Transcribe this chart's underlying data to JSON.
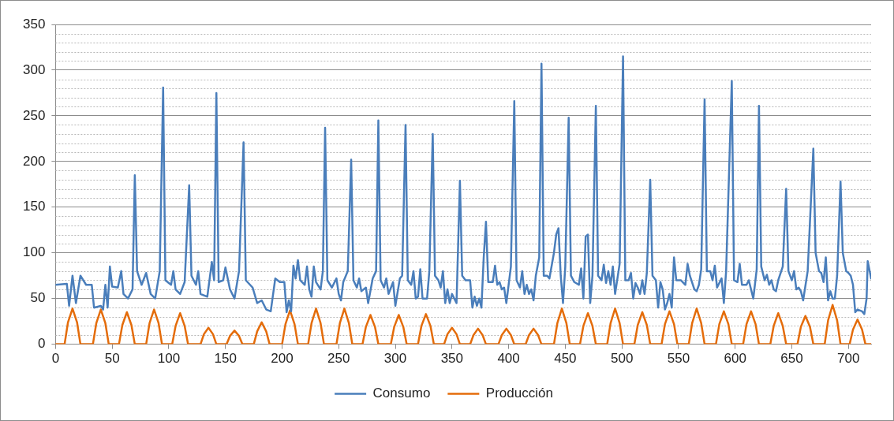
{
  "chart_data": {
    "type": "line",
    "xlim": [
      0,
      720
    ],
    "xticks": [
      0,
      50,
      100,
      150,
      200,
      250,
      300,
      350,
      400,
      450,
      500,
      550,
      600,
      650,
      700
    ],
    "ylim": [
      0,
      350
    ],
    "yticks": [
      0,
      {
        "value": 10,
        "label": null
      },
      {
        "value": 20,
        "label": null
      },
      {
        "value": 30,
        "label": null
      },
      {
        "value": 40,
        "label": null
      },
      50,
      {
        "value": 60,
        "label": null
      },
      {
        "value": 70,
        "label": null
      },
      {
        "value": 80,
        "label": null
      },
      {
        "value": 90,
        "label": null
      },
      100,
      {
        "value": 110,
        "label": null
      },
      {
        "value": 120,
        "label": null
      },
      {
        "value": 130,
        "label": null
      },
      {
        "value": 140,
        "label": null
      },
      150,
      {
        "value": 160,
        "label": null
      },
      {
        "value": 170,
        "label": null
      },
      {
        "value": 180,
        "label": null
      },
      {
        "value": 190,
        "label": null
      },
      200,
      {
        "value": 210,
        "label": null
      },
      {
        "value": 220,
        "label": null
      },
      {
        "value": 230,
        "label": null
      },
      {
        "value": 240,
        "label": null
      },
      250,
      {
        "value": 260,
        "label": null
      },
      {
        "value": 270,
        "label": null
      },
      {
        "value": 280,
        "label": null
      },
      {
        "value": 290,
        "label": null
      },
      300,
      {
        "value": 310,
        "label": null
      },
      {
        "value": 320,
        "label": null
      },
      {
        "value": 330,
        "label": null
      },
      {
        "value": 340,
        "label": null
      },
      350
    ],
    "grid": "y",
    "legend": "bottom",
    "marker": "none",
    "line_style": "solid",
    "series": [
      {
        "name": "Consumo",
        "color": "#4a7ebb",
        "x": [
          0,
          10,
          12,
          15,
          18,
          22,
          27,
          32,
          34,
          40,
          42,
          44,
          46,
          48,
          50,
          55,
          58,
          60,
          64,
          68,
          70,
          72,
          76,
          80,
          84,
          88,
          92,
          95,
          97,
          102,
          104,
          106,
          110,
          114,
          118,
          120,
          124,
          126,
          128,
          134,
          138,
          140,
          142,
          144,
          148,
          150,
          154,
          158,
          162,
          166,
          168,
          174,
          178,
          182,
          186,
          190,
          194,
          198,
          202,
          204,
          206,
          208,
          210,
          212,
          214,
          216,
          220,
          222,
          224,
          226,
          228,
          230,
          234,
          236,
          238,
          240,
          244,
          248,
          250,
          252,
          254,
          258,
          261,
          263,
          266,
          268,
          270,
          274,
          276,
          280,
          283,
          285,
          287,
          290,
          292,
          294,
          298,
          300,
          304,
          306,
          309,
          311,
          314,
          316,
          318,
          320,
          322,
          324,
          328,
          330,
          333,
          335,
          338,
          340,
          342,
          344,
          346,
          348,
          350,
          354,
          357,
          359,
          362,
          366,
          368,
          370,
          372,
          374,
          376,
          378,
          380,
          382,
          386,
          388,
          390,
          392,
          394,
          396,
          398,
          402,
          405,
          407,
          410,
          412,
          414,
          416,
          418,
          420,
          422,
          424,
          427,
          429,
          431,
          434,
          436,
          440,
          442,
          444,
          446,
          448,
          450,
          453,
          455,
          458,
          462,
          464,
          466,
          468,
          470,
          472,
          474,
          477,
          479,
          482,
          484,
          486,
          488,
          490,
          492,
          494,
          498,
          501,
          503,
          506,
          508,
          510,
          512,
          514,
          516,
          518,
          520,
          522,
          525,
          527,
          530,
          532,
          534,
          536,
          538,
          540,
          542,
          544,
          546,
          548,
          552,
          556,
          558,
          560,
          564,
          566,
          568,
          570,
          573,
          575,
          578,
          580,
          582,
          584,
          588,
          590,
          592,
          597,
          599,
          602,
          604,
          606,
          610,
          612,
          614,
          616,
          619,
          621,
          623,
          626,
          628,
          630,
          632,
          634,
          636,
          638,
          642,
          645,
          647,
          650,
          652,
          654,
          656,
          658,
          660,
          664,
          669,
          671,
          674,
          676,
          678,
          680,
          682,
          684,
          686,
          688,
          690,
          693,
          695,
          698,
          700,
          702,
          704,
          706,
          708,
          712,
          714,
          716,
          717,
          720
        ],
        "values": [
          65,
          66,
          42,
          75,
          45,
          75,
          65,
          65,
          40,
          42,
          38,
          65,
          40,
          85,
          63,
          62,
          80,
          55,
          50,
          60,
          185,
          80,
          65,
          78,
          55,
          50,
          80,
          281,
          70,
          65,
          80,
          60,
          55,
          68,
          174,
          75,
          65,
          80,
          55,
          52,
          90,
          70,
          275,
          68,
          70,
          84,
          60,
          50,
          80,
          221,
          70,
          62,
          45,
          48,
          38,
          36,
          72,
          68,
          68,
          35,
          48,
          36,
          86,
          72,
          92,
          70,
          65,
          85,
          60,
          52,
          85,
          68,
          60,
          80,
          237,
          70,
          62,
          72,
          55,
          48,
          68,
          80,
          202,
          70,
          62,
          72,
          58,
          62,
          45,
          72,
          80,
          245,
          70,
          62,
          72,
          55,
          68,
          42,
          72,
          75,
          240,
          70,
          65,
          80,
          50,
          52,
          82,
          50,
          50,
          80,
          230,
          75,
          70,
          62,
          80,
          45,
          60,
          45,
          55,
          45,
          179,
          75,
          70,
          70,
          40,
          52,
          42,
          50,
          40,
          95,
          134,
          68,
          68,
          86,
          65,
          68,
          60,
          62,
          45,
          85,
          266,
          70,
          62,
          80,
          55,
          65,
          55,
          60,
          48,
          75,
          95,
          307,
          75,
          75,
          72,
          100,
          120,
          127,
          75,
          45,
          85,
          248,
          75,
          68,
          65,
          83,
          50,
          118,
          120,
          45,
          75,
          261,
          75,
          70,
          87,
          67,
          80,
          65,
          85,
          55,
          88,
          315,
          70,
          70,
          78,
          50,
          67,
          62,
          55,
          70,
          55,
          78,
          180,
          75,
          70,
          40,
          68,
          60,
          38,
          45,
          55,
          40,
          95,
          70,
          70,
          65,
          88,
          75,
          60,
          58,
          65,
          82,
          268,
          80,
          80,
          70,
          86,
          62,
          72,
          45,
          80,
          288,
          70,
          68,
          88,
          65,
          65,
          70,
          60,
          50,
          82,
          261,
          85,
          70,
          76,
          65,
          70,
          60,
          58,
          70,
          85,
          170,
          80,
          70,
          80,
          60,
          62,
          58,
          48,
          80,
          214,
          100,
          80,
          78,
          68,
          95,
          48,
          58,
          50,
          50,
          75,
          178,
          100,
          80,
          78,
          75,
          65,
          35,
          38,
          36,
          33,
          50,
          91,
          72
        ]
      },
      {
        "name": "Producción",
        "color": "#e46c0a",
        "x": [
          0,
          8,
          11,
          15,
          19,
          22,
          33,
          36,
          40,
          44,
          47,
          56,
          59,
          63,
          67,
          70,
          80,
          83,
          87,
          91,
          94,
          103,
          106,
          110,
          114,
          117,
          128,
          131,
          135,
          139,
          142,
          151,
          154,
          158,
          162,
          165,
          175,
          178,
          182,
          186,
          189,
          200,
          203,
          207,
          211,
          214,
          223,
          226,
          230,
          234,
          237,
          248,
          251,
          255,
          259,
          262,
          271,
          274,
          278,
          282,
          285,
          296,
          299,
          303,
          307,
          310,
          320,
          323,
          327,
          331,
          334,
          343,
          346,
          350,
          354,
          357,
          366,
          369,
          373,
          377,
          380,
          391,
          394,
          398,
          402,
          405,
          415,
          418,
          422,
          426,
          429,
          440,
          443,
          447,
          451,
          454,
          463,
          466,
          470,
          474,
          477,
          487,
          490,
          494,
          498,
          501,
          511,
          514,
          518,
          522,
          525,
          535,
          538,
          542,
          546,
          549,
          559,
          562,
          566,
          570,
          573,
          583,
          586,
          590,
          594,
          597,
          607,
          610,
          614,
          618,
          621,
          631,
          634,
          638,
          642,
          645,
          655,
          658,
          662,
          666,
          669,
          679,
          682,
          686,
          690,
          693,
          701,
          704,
          708,
          712,
          715,
          720
        ],
        "values": [
          0,
          0,
          24,
          39,
          24,
          0,
          0,
          23,
          38,
          23,
          0,
          0,
          21,
          35,
          21,
          0,
          0,
          23,
          38,
          23,
          0,
          0,
          20,
          34,
          20,
          0,
          0,
          11,
          18,
          11,
          0,
          0,
          9,
          15,
          9,
          0,
          0,
          14,
          24,
          14,
          0,
          0,
          22,
          37,
          22,
          0,
          0,
          23,
          39,
          23,
          0,
          0,
          23,
          39,
          23,
          0,
          0,
          19,
          32,
          19,
          0,
          0,
          19,
          32,
          19,
          0,
          0,
          20,
          33,
          20,
          0,
          0,
          11,
          18,
          11,
          0,
          0,
          10,
          17,
          10,
          0,
          0,
          10,
          17,
          10,
          0,
          0,
          10,
          17,
          10,
          0,
          0,
          23,
          39,
          23,
          0,
          0,
          20,
          34,
          20,
          0,
          0,
          23,
          39,
          23,
          0,
          0,
          21,
          35,
          21,
          0,
          0,
          22,
          36,
          22,
          0,
          0,
          23,
          39,
          23,
          0,
          0,
          22,
          36,
          22,
          0,
          0,
          22,
          36,
          22,
          0,
          0,
          20,
          34,
          20,
          0,
          0,
          19,
          31,
          19,
          0,
          0,
          26,
          43,
          26,
          0,
          0,
          16,
          27,
          16,
          0,
          0
        ]
      }
    ]
  }
}
